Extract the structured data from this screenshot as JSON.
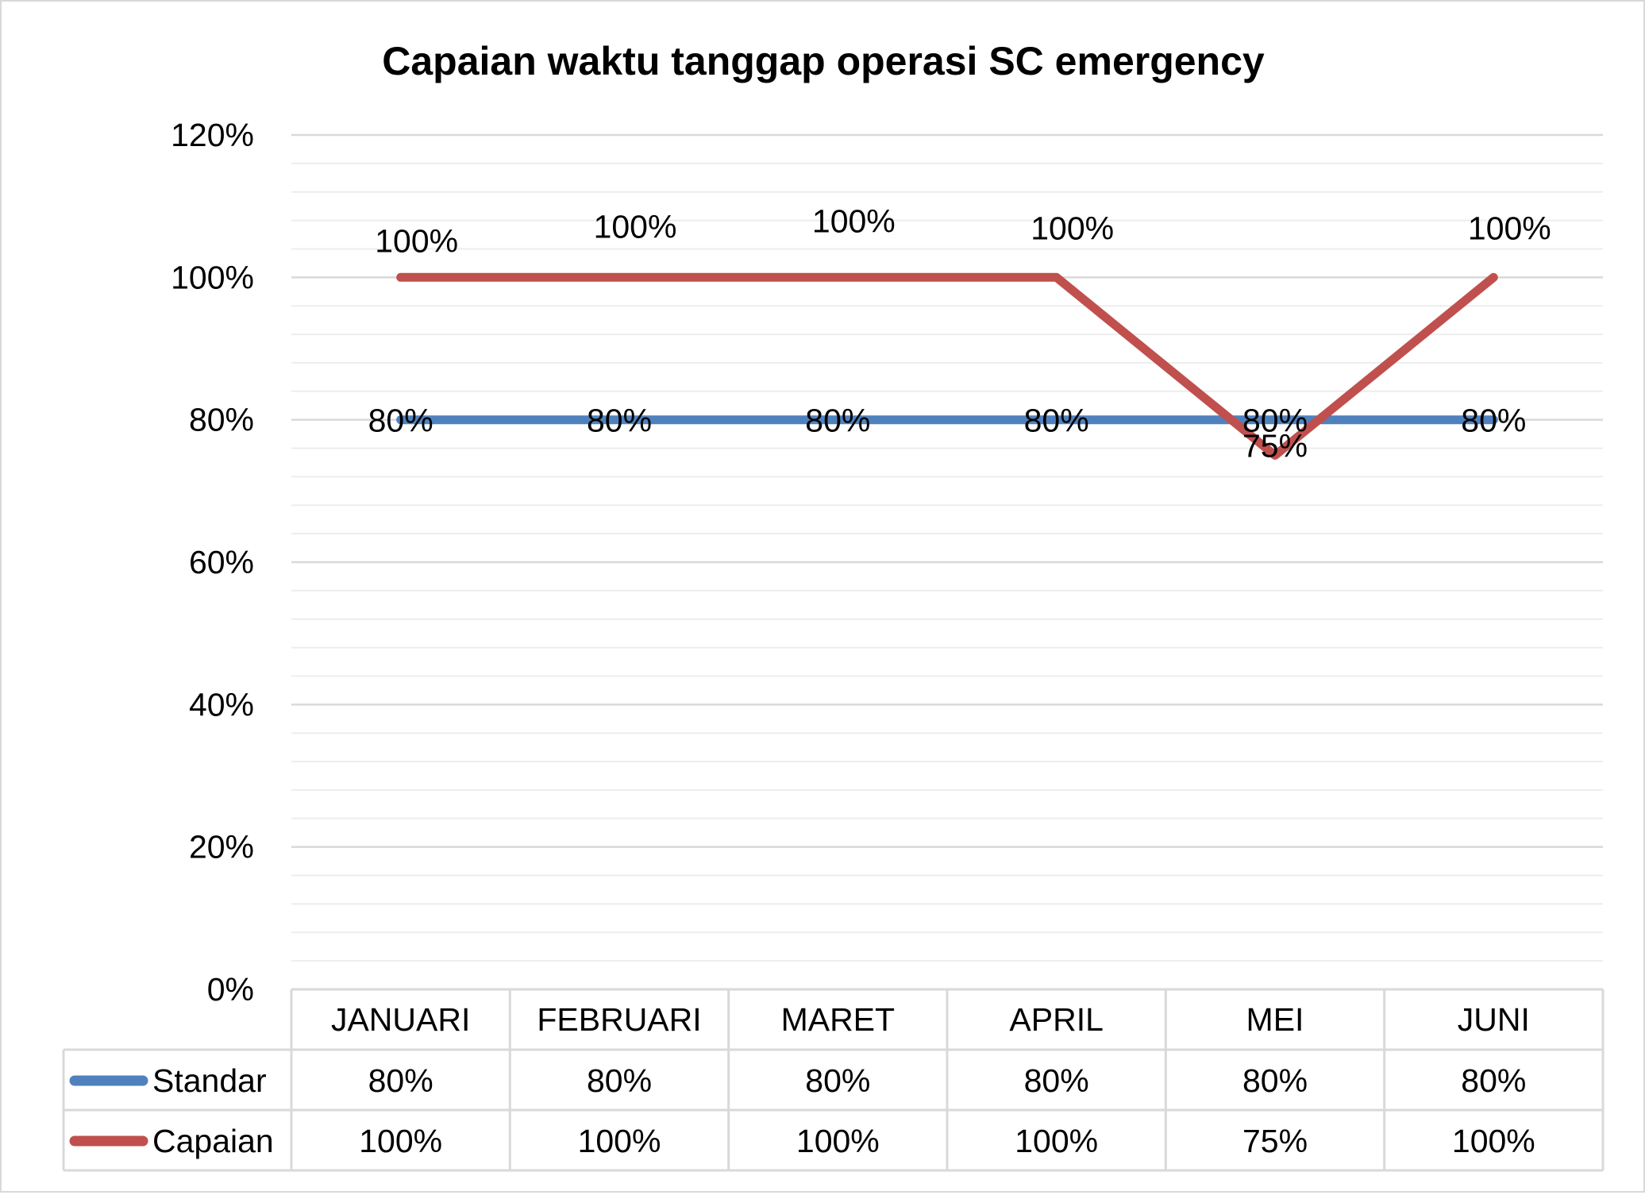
{
  "chart_data": {
    "type": "line",
    "title": "Capaian waktu tanggap operasi SC emergency",
    "categories": [
      "JANUARI",
      "FEBRUARI",
      "MARET",
      "APRIL",
      "MEI",
      "JUNI"
    ],
    "series": [
      {
        "name": "Standar",
        "color": "#4f81bd",
        "values": [
          0.8,
          0.8,
          0.8,
          0.8,
          0.8,
          0.8
        ],
        "labels": [
          "80%",
          "80%",
          "80%",
          "80%",
          "80%",
          "80%"
        ]
      },
      {
        "name": "Capaian",
        "color": "#c0504d",
        "values": [
          1.0,
          1.0,
          1.0,
          1.0,
          0.75,
          1.0
        ],
        "labels": [
          "100%",
          "100%",
          "100%",
          "100%",
          "75%",
          "100%"
        ]
      }
    ],
    "ylim": [
      0,
      1.2
    ],
    "yticks": [
      {
        "value": 0,
        "label": "0%"
      },
      {
        "value": 0.2,
        "label": "20%"
      },
      {
        "value": 0.4,
        "label": "40%"
      },
      {
        "value": 0.6,
        "label": "60%"
      },
      {
        "value": 0.8,
        "label": "80%"
      },
      {
        "value": 1.0,
        "label": "100%"
      },
      {
        "value": 1.2,
        "label": "120%"
      }
    ],
    "minor_step": 0.04,
    "grid": true,
    "legend": "data-table"
  }
}
